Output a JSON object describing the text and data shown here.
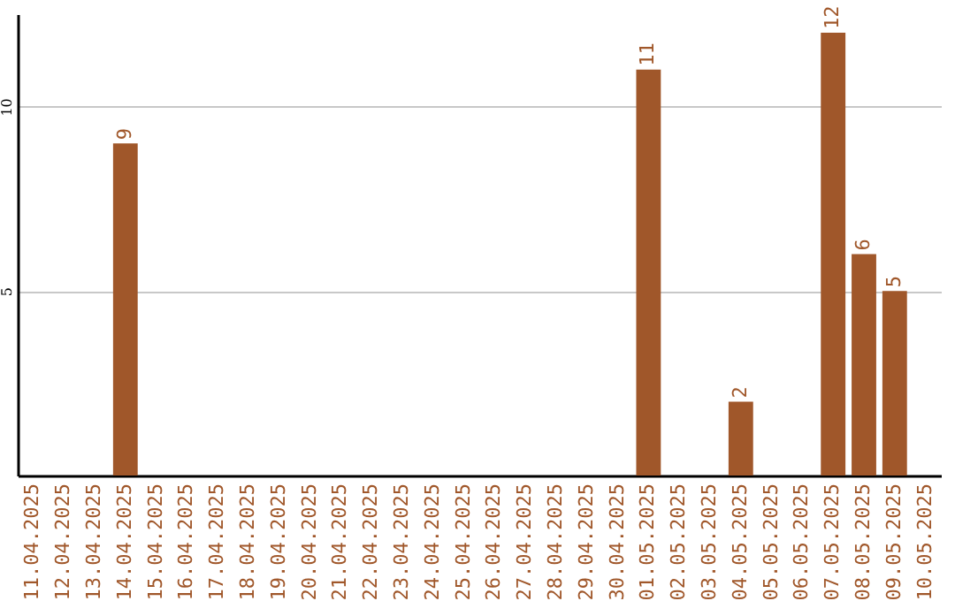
{
  "chart_data": {
    "type": "bar",
    "categories": [
      "11.04.2025",
      "12.04.2025",
      "13.04.2025",
      "14.04.2025",
      "15.04.2025",
      "16.04.2025",
      "17.04.2025",
      "18.04.2025",
      "19.04.2025",
      "20.04.2025",
      "21.04.2025",
      "22.04.2025",
      "23.04.2025",
      "24.04.2025",
      "25.04.2025",
      "26.04.2025",
      "27.04.2025",
      "28.04.2025",
      "29.04.2025",
      "30.04.2025",
      "01.05.2025",
      "02.05.2025",
      "03.05.2025",
      "04.05.2025",
      "05.05.2025",
      "06.05.2025",
      "07.05.2025",
      "08.05.2025",
      "09.05.2025",
      "10.05.2025"
    ],
    "values": [
      0,
      0,
      0,
      9,
      0,
      0,
      0,
      0,
      0,
      0,
      0,
      0,
      0,
      0,
      0,
      0,
      0,
      0,
      0,
      0,
      11,
      0,
      0,
      2,
      0,
      0,
      12,
      6,
      5,
      0
    ],
    "value_labels": [
      null,
      null,
      null,
      "9",
      null,
      null,
      null,
      null,
      null,
      null,
      null,
      null,
      null,
      null,
      null,
      null,
      null,
      null,
      null,
      null,
      "11",
      null,
      null,
      "2",
      null,
      null,
      "12",
      "6",
      "5",
      null
    ],
    "color": "#a0572a",
    "ylim": [
      0,
      12.5
    ],
    "yticks": [
      5,
      10
    ],
    "grid": "y"
  }
}
